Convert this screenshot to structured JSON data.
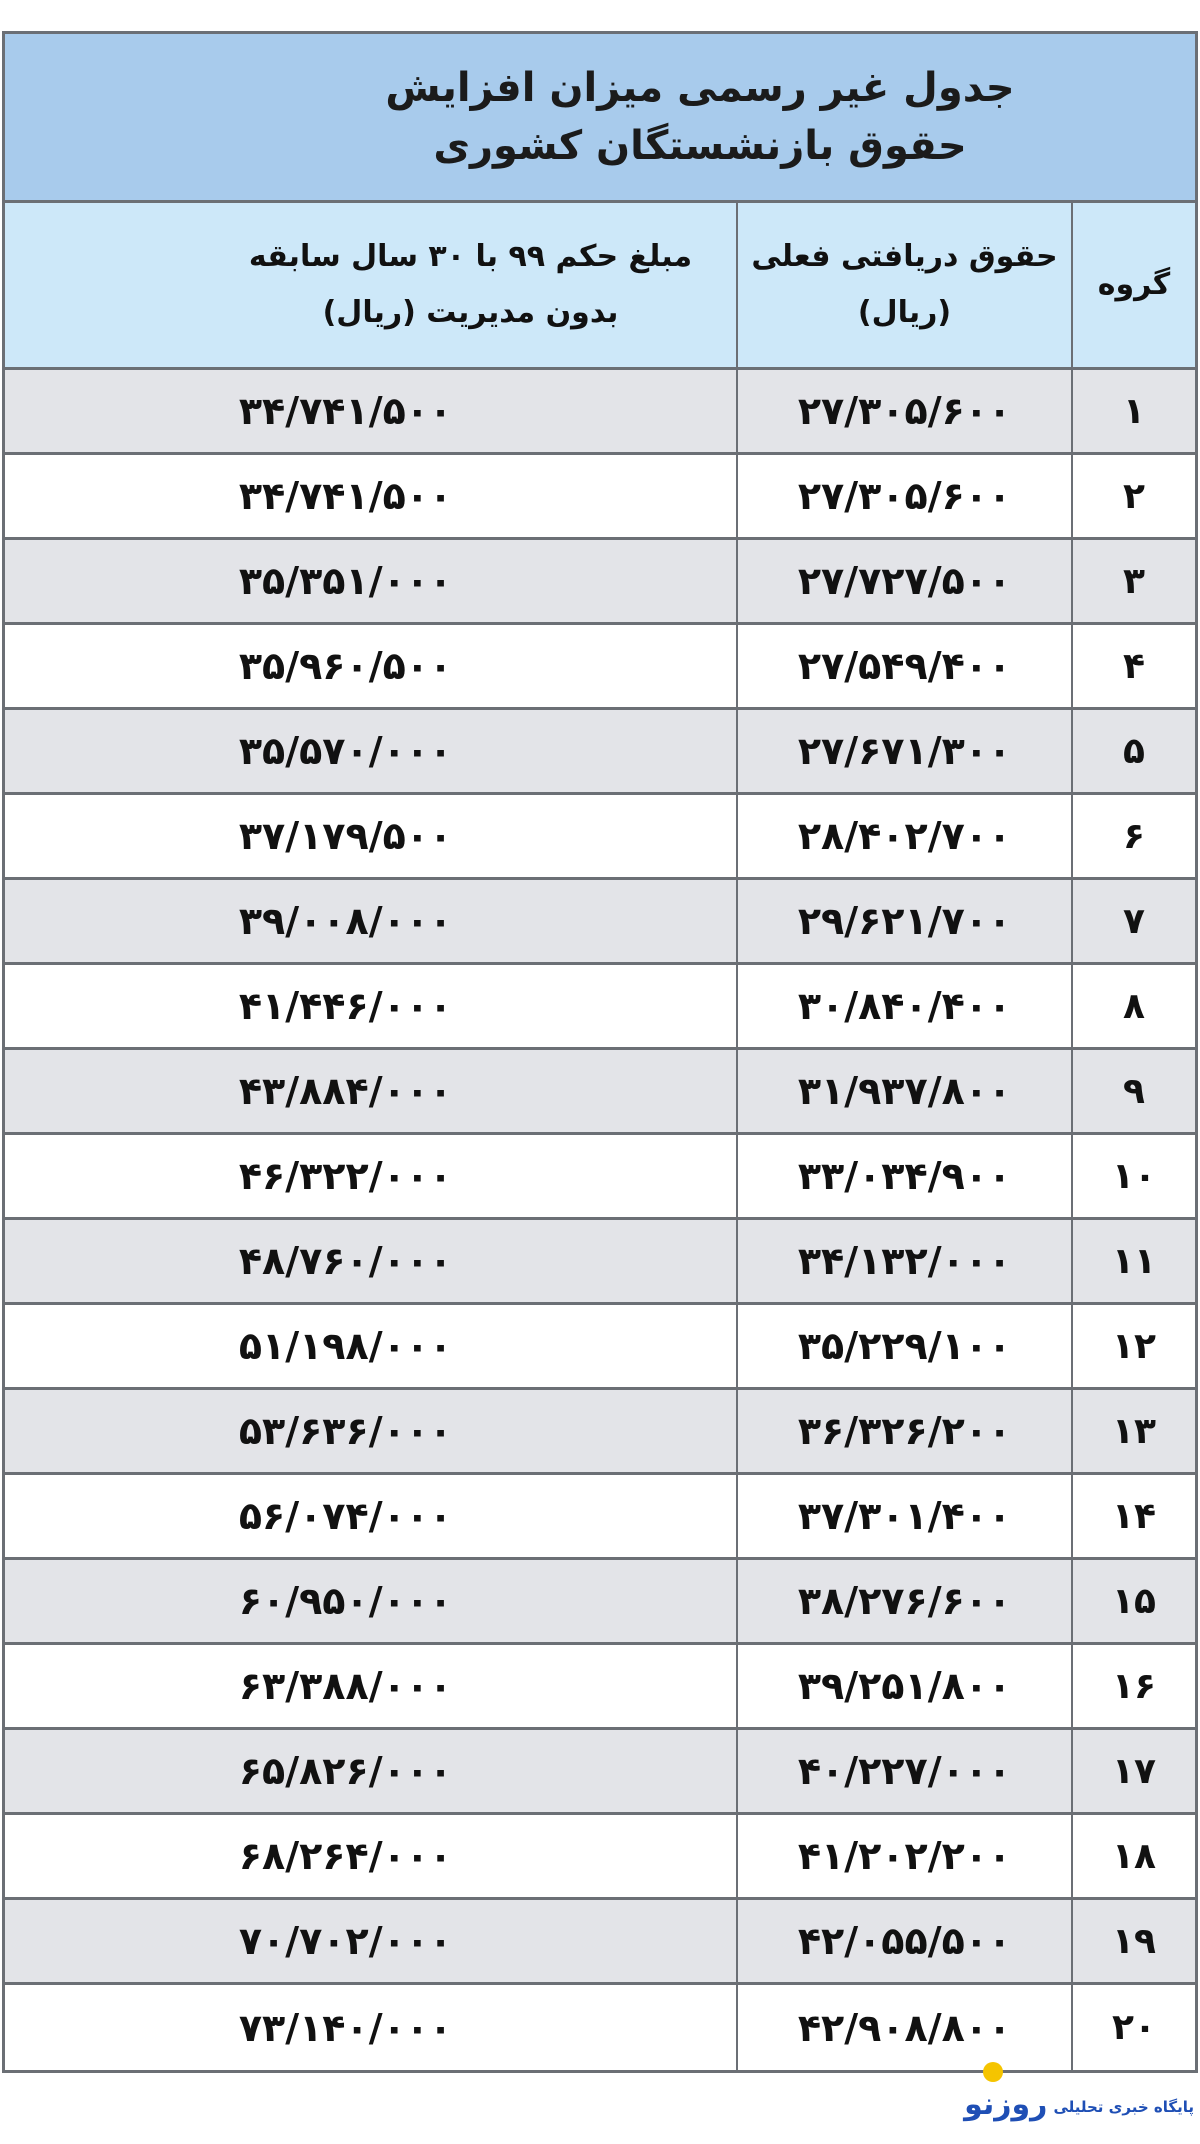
{
  "title": {
    "line1": "جدول غیر رسمی میزان افزایش",
    "line2": "حقوق بازنشستگان کشوری"
  },
  "headers": {
    "group": "گروه",
    "current_line1": "حقوق دریافتی فعلی",
    "current_line2": "(ریال)",
    "new_line1": "مبلغ حکم ۹۹ با ۳۰ سال سابقه",
    "new_line2": "بدون مدیریت (ریال)"
  },
  "rows": [
    {
      "group": "۱",
      "current": "۲۷/۳۰۵/۶۰۰",
      "new": "۳۴/۷۴۱/۵۰۰"
    },
    {
      "group": "۲",
      "current": "۲۷/۳۰۵/۶۰۰",
      "new": "۳۴/۷۴۱/۵۰۰"
    },
    {
      "group": "۳",
      "current": "۲۷/۷۲۷/۵۰۰",
      "new": "۳۵/۳۵۱/۰۰۰"
    },
    {
      "group": "۴",
      "current": "۲۷/۵۴۹/۴۰۰",
      "new": "۳۵/۹۶۰/۵۰۰"
    },
    {
      "group": "۵",
      "current": "۲۷/۶۷۱/۳۰۰",
      "new": "۳۵/۵۷۰/۰۰۰"
    },
    {
      "group": "۶",
      "current": "۲۸/۴۰۲/۷۰۰",
      "new": "۳۷/۱۷۹/۵۰۰"
    },
    {
      "group": "۷",
      "current": "۲۹/۶۲۱/۷۰۰",
      "new": "۳۹/۰۰۸/۰۰۰"
    },
    {
      "group": "۸",
      "current": "۳۰/۸۴۰/۴۰۰",
      "new": "۴۱/۴۴۶/۰۰۰"
    },
    {
      "group": "۹",
      "current": "۳۱/۹۳۷/۸۰۰",
      "new": "۴۳/۸۸۴/۰۰۰"
    },
    {
      "group": "۱۰",
      "current": "۳۳/۰۳۴/۹۰۰",
      "new": "۴۶/۳۲۲/۰۰۰"
    },
    {
      "group": "۱۱",
      "current": "۳۴/۱۳۲/۰۰۰",
      "new": "۴۸/۷۶۰/۰۰۰"
    },
    {
      "group": "۱۲",
      "current": "۳۵/۲۲۹/۱۰۰",
      "new": "۵۱/۱۹۸/۰۰۰"
    },
    {
      "group": "۱۳",
      "current": "۳۶/۳۲۶/۲۰۰",
      "new": "۵۳/۶۳۶/۰۰۰"
    },
    {
      "group": "۱۴",
      "current": "۳۷/۳۰۱/۴۰۰",
      "new": "۵۶/۰۷۴/۰۰۰"
    },
    {
      "group": "۱۵",
      "current": "۳۸/۲۷۶/۶۰۰",
      "new": "۶۰/۹۵۰/۰۰۰"
    },
    {
      "group": "۱۶",
      "current": "۳۹/۲۵۱/۸۰۰",
      "new": "۶۳/۳۸۸/۰۰۰"
    },
    {
      "group": "۱۷",
      "current": "۴۰/۲۲۷/۰۰۰",
      "new": "۶۵/۸۲۶/۰۰۰"
    },
    {
      "group": "۱۸",
      "current": "۴۱/۲۰۲/۲۰۰",
      "new": "۶۸/۲۶۴/۰۰۰"
    },
    {
      "group": "۱۹",
      "current": "۴۲/۰۵۵/۵۰۰",
      "new": "۷۰/۷۰۲/۰۰۰"
    },
    {
      "group": "۲۰",
      "current": "۴۲/۹۰۸/۸۰۰",
      "new": "۷۳/۱۴۰/۰۰۰"
    }
  ],
  "logo": {
    "brand": "روزنو",
    "tagline": "پایگاه خبری تحلیلی"
  },
  "colors": {
    "title_bg": "#a8cbec",
    "header_bg": "#cde8f9",
    "row_alt_bg": "#e3e4e8",
    "border": "#6b6f75",
    "logo_blue": "#1f4fb5",
    "logo_yellow": "#f5c400"
  }
}
